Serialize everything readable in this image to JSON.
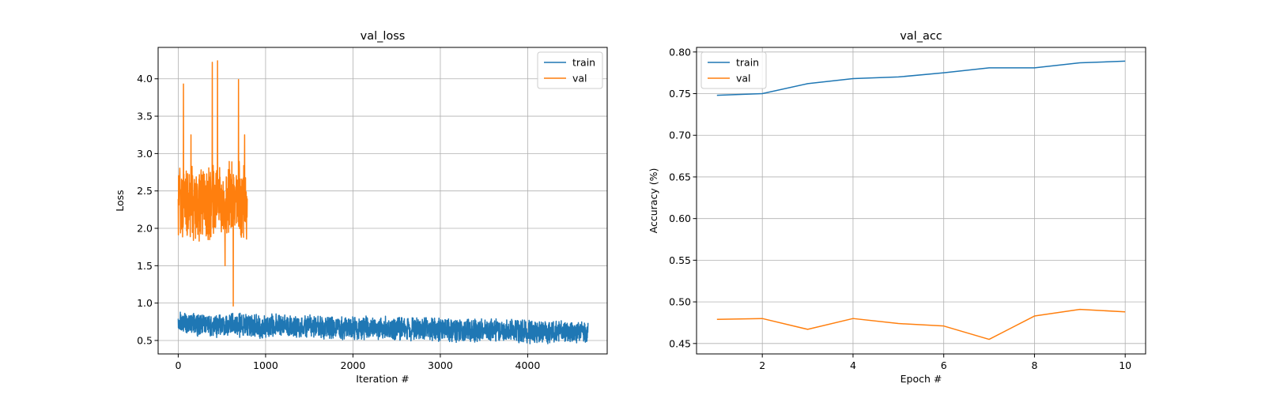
{
  "chart_data": [
    {
      "type": "line",
      "title": "val_loss",
      "xlabel": "Iteration #",
      "ylabel": "Loss",
      "xlim": [
        -230,
        4910
      ],
      "ylim": [
        0.32,
        4.42
      ],
      "xticks": [
        0,
        1000,
        2000,
        3000,
        4000
      ],
      "xtick_labels": [
        "0",
        "1000",
        "2000",
        "3000",
        "4000"
      ],
      "yticks": [
        0.5,
        1.0,
        1.5,
        2.0,
        2.5,
        3.0,
        3.5,
        4.0
      ],
      "ytick_labels": [
        "0.5",
        "1.0",
        "1.5",
        "2.0",
        "2.5",
        "3.0",
        "3.5",
        "4.0"
      ],
      "grid": true,
      "legend": "upper right",
      "series": [
        {
          "name": "train",
          "color": "#1f77b4",
          "x_range": [
            0,
            4690
          ],
          "mean_start": 0.72,
          "mean_end": 0.6,
          "noise_halfwidth": 0.17,
          "min": 0.34,
          "max": 1.01
        },
        {
          "name": "val",
          "color": "#ff7f0e",
          "x_range": [
            0,
            790
          ],
          "mean": 2.35,
          "noise_halfwidth": 0.55,
          "min": 0.96,
          "max": 4.24,
          "spikes": [
            {
              "x": 60,
              "y": 3.93
            },
            {
              "x": 145,
              "y": 3.25
            },
            {
              "x": 390,
              "y": 4.22
            },
            {
              "x": 450,
              "y": 4.24
            },
            {
              "x": 535,
              "y": 1.5
            },
            {
              "x": 630,
              "y": 0.96
            },
            {
              "x": 690,
              "y": 3.99
            },
            {
              "x": 760,
              "y": 3.25
            }
          ]
        }
      ]
    },
    {
      "type": "line",
      "title": "val_acc",
      "xlabel": "Epoch #",
      "ylabel": "Accuracy (%)",
      "xlim": [
        0.55,
        10.45
      ],
      "ylim": [
        0.4375,
        0.8055
      ],
      "xticks": [
        2,
        4,
        6,
        8,
        10
      ],
      "xtick_labels": [
        "2",
        "4",
        "6",
        "8",
        "10"
      ],
      "yticks": [
        0.45,
        0.5,
        0.55,
        0.6,
        0.65,
        0.7,
        0.75,
        0.8
      ],
      "ytick_labels": [
        "0.45",
        "0.50",
        "0.55",
        "0.60",
        "0.65",
        "0.70",
        "0.75",
        "0.80"
      ],
      "grid": true,
      "legend": "upper left",
      "x": [
        1,
        2,
        3,
        4,
        5,
        6,
        7,
        8,
        9,
        10
      ],
      "series": [
        {
          "name": "train",
          "color": "#1f77b4",
          "values": [
            0.748,
            0.75,
            0.762,
            0.768,
            0.77,
            0.775,
            0.781,
            0.781,
            0.787,
            0.789
          ]
        },
        {
          "name": "val",
          "color": "#ff7f0e",
          "values": [
            0.479,
            0.48,
            0.467,
            0.48,
            0.474,
            0.471,
            0.455,
            0.483,
            0.491,
            0.488
          ]
        }
      ]
    }
  ]
}
